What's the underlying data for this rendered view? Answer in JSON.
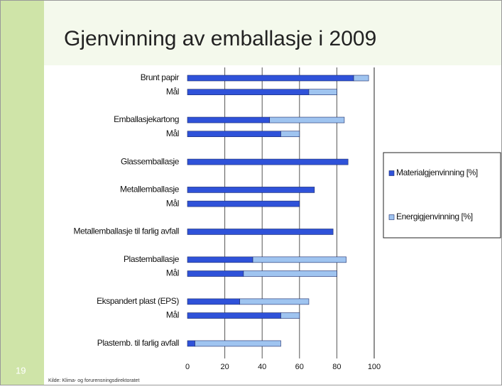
{
  "slide": {
    "title": "Gjenvinning av emballasje i 2009",
    "number": "19",
    "source": "Kilde: Klima- og forurensningsdirektoratet"
  },
  "chart_data": {
    "type": "stacked-barh",
    "categories": [
      "Brunt papir",
      "Mål",
      null,
      "Emballasjekartong",
      "Mål",
      null,
      "Glassemballasje",
      null,
      "Metallemballasje",
      "Mål",
      null,
      "Metallemballasje til farlig avfall",
      null,
      "Plastemballasje",
      "Mål",
      null,
      "Ekspandert plast (EPS)",
      "Mål",
      null,
      "Plastemb. til farlig avfall"
    ],
    "series": [
      {
        "name": "Materialgjenvinning [%]",
        "color": "#2f52d9",
        "values": [
          89,
          65,
          null,
          44,
          50,
          null,
          86,
          null,
          68,
          60,
          null,
          78,
          null,
          35,
          30,
          null,
          28,
          50,
          null,
          4
        ]
      },
      {
        "name": "Energigjenvinning [%]",
        "color": "#9fc4f0",
        "values": [
          8,
          15,
          null,
          40,
          10,
          null,
          0,
          null,
          0,
          0,
          null,
          0,
          null,
          50,
          50,
          null,
          37,
          10,
          null,
          46
        ]
      }
    ],
    "xlim": [
      0,
      100
    ],
    "xticks": [
      0,
      20,
      40,
      60,
      80,
      100
    ],
    "grid": true,
    "legend": "right"
  }
}
